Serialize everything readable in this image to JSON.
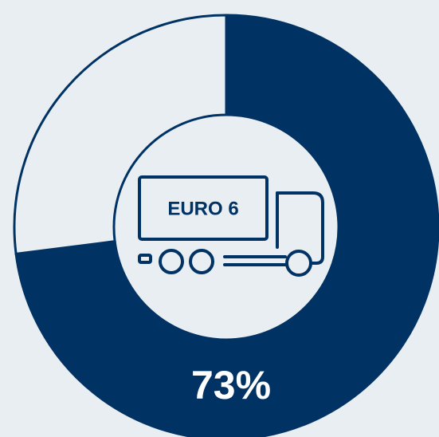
{
  "chart_data": {
    "type": "donut",
    "center_text": "EURO 6",
    "values": [
      73,
      27
    ],
    "value_labels": [
      "73%",
      null
    ],
    "colors": [
      "#003263",
      "#e9eef2"
    ],
    "outline_color": "#003263"
  }
}
